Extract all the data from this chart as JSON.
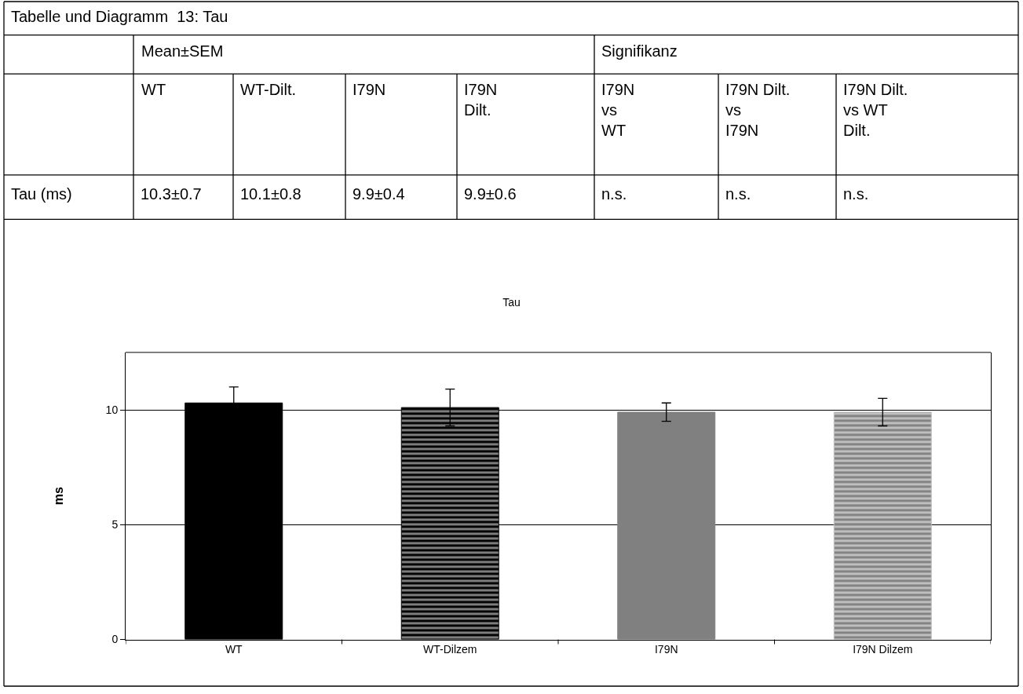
{
  "chart_data": {
    "type": "bar",
    "title": "Tau",
    "ylabel": "ms",
    "categories": [
      "WT",
      "WT-Dilzem",
      "I79N",
      "I79N Dilzem"
    ],
    "values": [
      10.3,
      10.1,
      9.9,
      9.9
    ],
    "errors": [
      0.7,
      0.8,
      0.4,
      0.6
    ],
    "colors": [
      "#000000",
      "#000000",
      "#808080",
      "#c0c0c0"
    ],
    "ylim": [
      0,
      12.5
    ],
    "yticks": [
      0,
      5,
      10
    ],
    "grid": "y",
    "annotations": [
      "Tabelle und Diagramm  13: Tau",
      "Mean±SEM",
      "Signifikanz",
      "WT",
      "WT-Dilt.",
      "I79N",
      "I79N\nDilt.",
      "I79N\nvs\nWT",
      "I79N Dilt.\nvs\nI79N",
      "I79N Dilt.\nvs WT\nDilt.",
      "Tau (ms)",
      "10.3±0.7",
      "10.1±0.8",
      "9.9±0.4",
      "9.9±0.6",
      "n.s.",
      "n.s.",
      "n.s."
    ]
  }
}
